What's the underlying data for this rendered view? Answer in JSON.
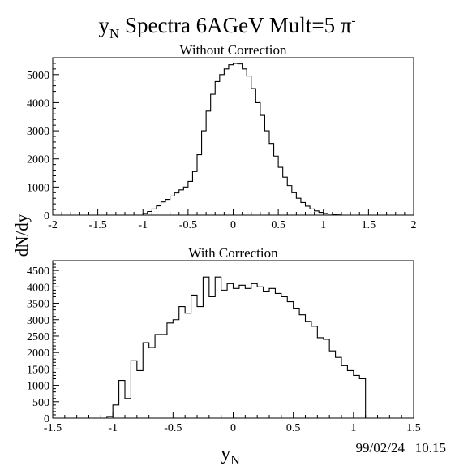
{
  "title": {
    "main": "y",
    "sub": "N",
    "rest": " Spectra 6AGeV Mult=5 π",
    "sup": "-"
  },
  "ylabel": "dN/dy",
  "xlabel": {
    "main": "y",
    "sub": "N"
  },
  "timestamp": "99/02/24   10.15",
  "chart_data": [
    {
      "type": "histogram",
      "title": "Without Correction",
      "xlim": [
        -2,
        2
      ],
      "ylim": [
        0,
        5600
      ],
      "xticks": [
        -2,
        -1.5,
        -1,
        -0.5,
        0,
        0.5,
        1,
        1.5,
        2
      ],
      "xtick_labels": [
        "-2",
        "-1.5",
        "-1",
        "-0.5",
        "0",
        "0.5",
        "1",
        "1.5",
        "2"
      ],
      "yticks": [
        0,
        1000,
        2000,
        3000,
        4000,
        5000
      ],
      "ytick_labels": [
        "0",
        "1000",
        "2000",
        "3000",
        "4000",
        "5000"
      ],
      "bin_start": -1.0,
      "bin_width": 0.05,
      "values": [
        60,
        130,
        220,
        330,
        470,
        560,
        680,
        790,
        900,
        1000,
        1200,
        1550,
        2150,
        3000,
        3700,
        4300,
        4750,
        5000,
        5200,
        5350,
        5400,
        5380,
        5200,
        4950,
        4500,
        4000,
        3550,
        3000,
        2550,
        2100,
        1700,
        1350,
        1050,
        800,
        600,
        450,
        320,
        220,
        150,
        100,
        60,
        40,
        20,
        10
      ]
    },
    {
      "type": "histogram",
      "title": "With Correction",
      "xlim": [
        -1.5,
        1.5
      ],
      "ylim": [
        0,
        4800
      ],
      "xticks": [
        -1.5,
        -1,
        -0.5,
        0,
        0.5,
        1,
        1.5
      ],
      "xtick_labels": [
        "-1.5",
        "-1",
        "-0.5",
        "0",
        "0.5",
        "1",
        "1.5"
      ],
      "yticks": [
        0,
        500,
        1000,
        1500,
        2000,
        2500,
        3000,
        3500,
        4000,
        4500
      ],
      "ytick_labels": [
        "0",
        "500",
        "1000",
        "1500",
        "2000",
        "2500",
        "3000",
        "3500",
        "4000",
        "4500"
      ],
      "bin_start": -1.05,
      "bin_width": 0.05,
      "values": [
        50,
        400,
        1150,
        600,
        1750,
        1450,
        2300,
        2150,
        2550,
        2550,
        2900,
        3000,
        3400,
        3200,
        3750,
        3400,
        4300,
        3700,
        4300,
        3900,
        4100,
        3950,
        4050,
        3950,
        4100,
        4000,
        3850,
        3950,
        3800,
        3700,
        3550,
        3350,
        3150,
        2950,
        2800,
        2450,
        2400,
        2050,
        1850,
        1600,
        1450,
        1300,
        1200
      ]
    }
  ]
}
